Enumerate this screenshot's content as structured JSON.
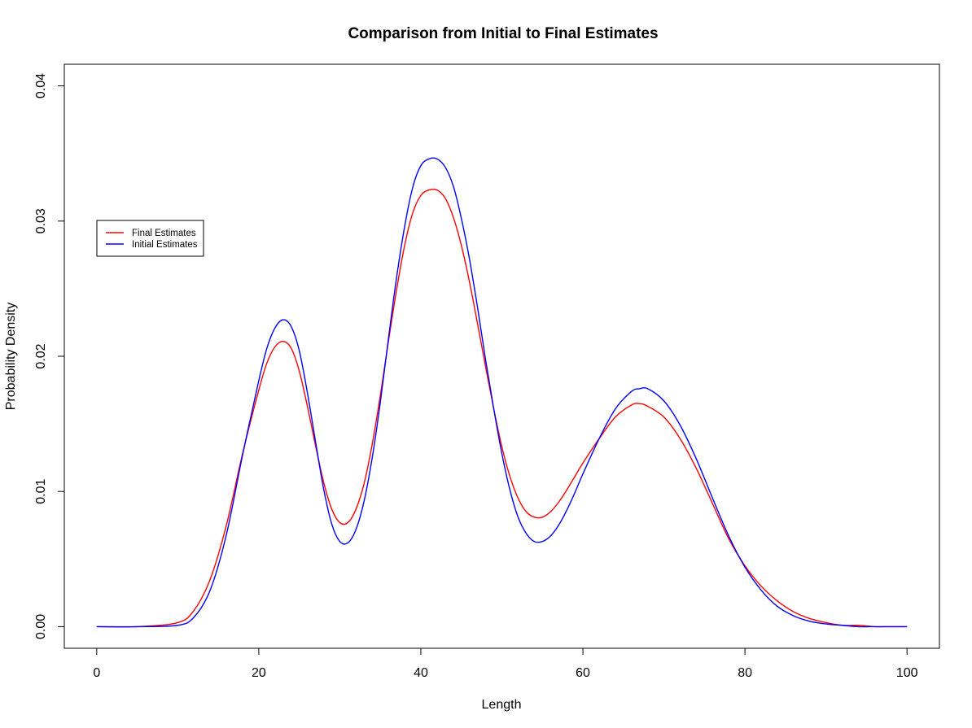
{
  "chart_data": {
    "type": "line",
    "title": "Comparison from Initial to Final Estimates",
    "xlabel": "Length",
    "ylabel": "Probability Density",
    "xlim": [
      -4,
      104
    ],
    "ylim": [
      -0.0016,
      0.0416
    ],
    "x_ticks": [
      0,
      20,
      40,
      60,
      80,
      100
    ],
    "y_ticks": [
      0.0,
      0.01,
      0.02,
      0.03,
      0.04
    ],
    "x_tick_labels": [
      "0",
      "20",
      "40",
      "60",
      "80",
      "100"
    ],
    "y_tick_labels": [
      "0.00",
      "0.01",
      "0.02",
      "0.03",
      "0.04"
    ],
    "grid": false,
    "legend_position": "left",
    "x": [
      0,
      5,
      10,
      12,
      14,
      16,
      18,
      20,
      21,
      22,
      23,
      24,
      25,
      26,
      27,
      28,
      29,
      30,
      31,
      32,
      33,
      34,
      35,
      36,
      37,
      38,
      39,
      40,
      41,
      42,
      43,
      44,
      45,
      46,
      47,
      48,
      49,
      50,
      51,
      52,
      53,
      54,
      55,
      56,
      57,
      58,
      59,
      60,
      62,
      64,
      66,
      67,
      68,
      70,
      72,
      74,
      76,
      78,
      80,
      82,
      84,
      86,
      88,
      90,
      92,
      94,
      96,
      98,
      100
    ],
    "series": [
      {
        "name": "Final Estimates",
        "color": "#ff0000",
        "values": [
          0.0,
          0.0,
          0.0003,
          0.0012,
          0.0035,
          0.0075,
          0.0128,
          0.0175,
          0.0195,
          0.0207,
          0.0211,
          0.0206,
          0.0189,
          0.0163,
          0.0134,
          0.0107,
          0.0087,
          0.0077,
          0.0077,
          0.0087,
          0.0106,
          0.0135,
          0.0171,
          0.0211,
          0.0249,
          0.0282,
          0.0306,
          0.0319,
          0.0323,
          0.0323,
          0.0317,
          0.0303,
          0.0282,
          0.0255,
          0.0224,
          0.0192,
          0.0161,
          0.0133,
          0.0111,
          0.0095,
          0.0085,
          0.0081,
          0.0081,
          0.0085,
          0.0092,
          0.0101,
          0.0111,
          0.0121,
          0.0139,
          0.0155,
          0.0164,
          0.0165,
          0.0163,
          0.0155,
          0.0139,
          0.0117,
          0.0091,
          0.0065,
          0.0045,
          0.003,
          0.0019,
          0.0011,
          0.0006,
          0.0003,
          0.0001,
          0.0001,
          0.0,
          0.0,
          0.0
        ]
      },
      {
        "name": "Initial Estimates",
        "color": "#0000ff",
        "values": [
          0.0,
          0.0,
          0.0001,
          0.0007,
          0.0027,
          0.0068,
          0.0127,
          0.0182,
          0.0206,
          0.0221,
          0.0227,
          0.0222,
          0.0204,
          0.0173,
          0.0137,
          0.0102,
          0.0076,
          0.0063,
          0.0062,
          0.0072,
          0.0093,
          0.0125,
          0.0166,
          0.0213,
          0.0258,
          0.0296,
          0.0325,
          0.0341,
          0.0346,
          0.0346,
          0.034,
          0.0326,
          0.0302,
          0.0272,
          0.0236,
          0.0197,
          0.0161,
          0.0128,
          0.0101,
          0.0081,
          0.0069,
          0.0063,
          0.0063,
          0.0067,
          0.0075,
          0.0086,
          0.0099,
          0.0113,
          0.0139,
          0.0161,
          0.0174,
          0.0176,
          0.0176,
          0.0167,
          0.0149,
          0.0124,
          0.0095,
          0.0067,
          0.0044,
          0.0027,
          0.0015,
          0.0008,
          0.0004,
          0.0002,
          0.0001,
          0.0,
          0.0,
          0.0,
          0.0
        ]
      }
    ]
  }
}
